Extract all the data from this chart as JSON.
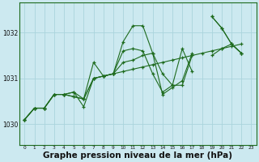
{
  "background_color": "#cce9f0",
  "grid_color": "#b0d8e0",
  "line_color": "#1e6b1e",
  "marker_color": "#1e6b1e",
  "xlabel": "Graphe pression niveau de la mer (hPa)",
  "xlabel_fontsize": 7.5,
  "ylabel_ticks": [
    1030,
    1031,
    1032
  ],
  "xlim": [
    -0.5,
    23.5
  ],
  "ylim": [
    1029.55,
    1032.65
  ],
  "series": [
    {
      "x": [
        0,
        1,
        2,
        3,
        4,
        5,
        6,
        7,
        8,
        9,
        10,
        11,
        12,
        13,
        14,
        15,
        16,
        17,
        18,
        19,
        20,
        21,
        22
      ],
      "y": [
        1030.1,
        1030.35,
        1030.35,
        1030.65,
        1030.65,
        1030.7,
        1030.55,
        1031.35,
        1031.05,
        1031.1,
        1031.8,
        1032.15,
        1032.15,
        1031.55,
        1030.65,
        1030.8,
        1030.95,
        1031.55,
        null,
        1032.35,
        1032.1,
        1031.75,
        1031.55
      ]
    },
    {
      "x": [
        0,
        1,
        2,
        3,
        4,
        5,
        6,
        7,
        8,
        9,
        10,
        11,
        12,
        13,
        14,
        15,
        16,
        17,
        18,
        19,
        20,
        21,
        22
      ],
      "y": [
        1030.1,
        1030.35,
        1030.35,
        1030.65,
        1030.65,
        1030.6,
        1030.55,
        1031.0,
        1031.05,
        1031.1,
        1031.15,
        1031.2,
        1031.25,
        1031.3,
        1031.35,
        1031.4,
        1031.45,
        1031.5,
        1031.55,
        1031.6,
        1031.65,
        1031.7,
        1031.75
      ]
    },
    {
      "x": [
        0,
        1,
        2,
        3,
        4,
        5,
        6,
        7,
        8,
        9,
        10,
        11,
        12,
        13,
        14,
        15,
        16,
        17,
        18,
        19,
        20,
        21,
        22
      ],
      "y": [
        1030.1,
        1030.35,
        1030.35,
        1030.65,
        1030.65,
        1030.7,
        1030.38,
        1031.0,
        1031.05,
        1031.1,
        1031.6,
        1031.65,
        1031.6,
        1031.1,
        1030.7,
        1030.85,
        1031.65,
        1031.15,
        null,
        1032.35,
        1032.1,
        1031.75,
        1031.55
      ]
    },
    {
      "x": [
        0,
        1,
        2,
        3,
        4,
        5,
        6,
        7,
        8,
        9,
        10,
        11,
        12,
        13,
        14,
        15,
        16,
        17,
        18,
        19,
        20,
        21,
        22
      ],
      "y": [
        1030.1,
        1030.35,
        1030.35,
        1030.65,
        1030.65,
        1030.6,
        1030.55,
        1031.0,
        1031.05,
        1031.1,
        1031.35,
        1031.4,
        1031.5,
        1031.55,
        1031.1,
        1030.85,
        1030.85,
        1031.5,
        null,
        1031.5,
        1031.65,
        1031.75,
        1031.55
      ]
    }
  ],
  "xtick_labels": [
    "0",
    "1",
    "2",
    "3",
    "4",
    "5",
    "6",
    "7",
    "8",
    "9",
    "10",
    "11",
    "12",
    "13",
    "14",
    "15",
    "16",
    "17",
    "18",
    "19",
    "20",
    "21",
    "22",
    "23"
  ]
}
